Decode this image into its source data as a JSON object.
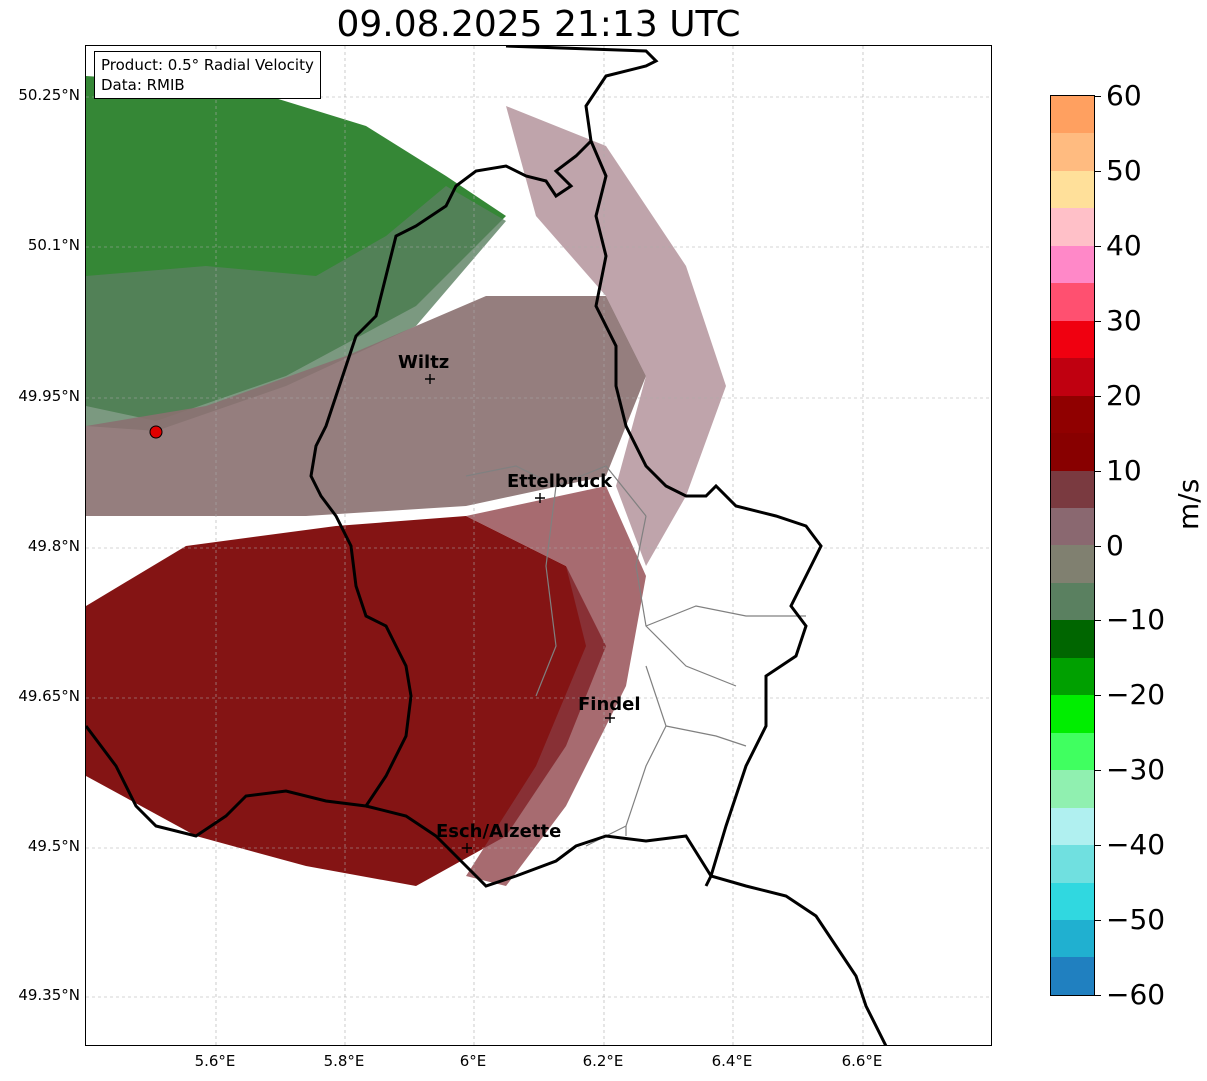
{
  "title": "09.08.2025 21:13 UTC",
  "info": {
    "product_line": "Product: 0.5° Radial Velocity",
    "data_line": "Data: RMIB"
  },
  "axes": {
    "lat_labels": [
      "50.25°N",
      "50.1°N",
      "49.95°N",
      "49.8°N",
      "49.65°N",
      "49.5°N",
      "49.35°N"
    ],
    "lon_labels": [
      "5.6°E",
      "5.8°E",
      "6°E",
      "6.2°E",
      "6.4°E",
      "6.6°E"
    ]
  },
  "cities": {
    "wiltz": "Wiltz",
    "ettelbruck": "Ettelbruck",
    "findel": "Findel",
    "esch": "Esch/Alzette"
  },
  "colorbar": {
    "unit": "m/s",
    "ticks": [
      "60",
      "50",
      "40",
      "30",
      "20",
      "10",
      "0",
      "−10",
      "−20",
      "−30",
      "−40",
      "−50",
      "−60"
    ],
    "colors": [
      "#ffa060",
      "#ffbb80",
      "#ffe09a",
      "#ffc0c8",
      "#ff88c8",
      "#ff5070",
      "#f00010",
      "#c00010",
      "#900000",
      "#880000",
      "#7a3a40",
      "#8a6870",
      "#808070",
      "#5a8060",
      "#006600",
      "#00a000",
      "#00ee00",
      "#40ff60",
      "#90f0b0",
      "#b0f0f0",
      "#70e0e0",
      "#30d8e0",
      "#20b0d0",
      "#2080c0"
    ]
  }
}
